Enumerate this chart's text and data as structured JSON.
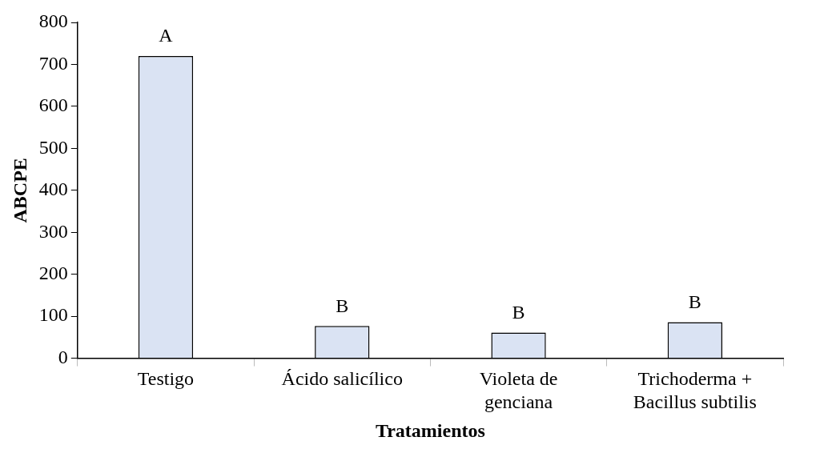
{
  "chart_data": {
    "type": "bar",
    "xlabel": "Tratamientos",
    "ylabel": "ABCPE",
    "categories": [
      "Testigo",
      "Ácido salicílico",
      "Violeta de\ngenciana",
      "Trichoderma +\nBacillus subtilis"
    ],
    "values": [
      720,
      77,
      61,
      86
    ],
    "color": "#dae3f3",
    "ylim": [
      0,
      800
    ],
    "yticks": [
      0,
      100,
      200,
      300,
      400,
      500,
      600,
      700,
      800
    ],
    "grid": false,
    "legend": false,
    "annotations": [
      {
        "text": "A",
        "x": "Testigo",
        "y": 720
      },
      {
        "text": "B",
        "x": "Ácido salicílico",
        "y": 77
      },
      {
        "text": "B",
        "x": "Violeta de\ngenciana",
        "y": 61
      },
      {
        "text": "B",
        "x": "Trichoderma +\nBacillus subtilis",
        "y": 86
      }
    ]
  }
}
